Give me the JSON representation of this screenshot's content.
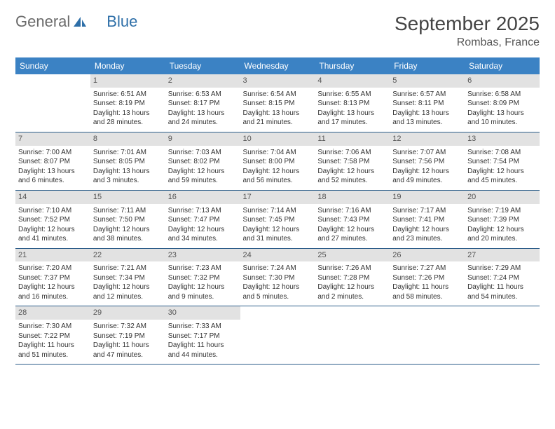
{
  "logo": {
    "part1": "General",
    "part2": "Blue"
  },
  "title": "September 2025",
  "location": "Rombas, France",
  "colors": {
    "header_bg": "#3b82c4",
    "daynum_bg": "#e2e2e2",
    "row_border": "#2d5e8a",
    "logo_gray": "#6b6b6b",
    "logo_blue": "#2e6fa8"
  },
  "weekdays": [
    "Sunday",
    "Monday",
    "Tuesday",
    "Wednesday",
    "Thursday",
    "Friday",
    "Saturday"
  ],
  "weeks": [
    [
      {
        "n": "",
        "sr": "",
        "ss": "",
        "dl": ""
      },
      {
        "n": "1",
        "sr": "Sunrise: 6:51 AM",
        "ss": "Sunset: 8:19 PM",
        "dl": "Daylight: 13 hours and 28 minutes."
      },
      {
        "n": "2",
        "sr": "Sunrise: 6:53 AM",
        "ss": "Sunset: 8:17 PM",
        "dl": "Daylight: 13 hours and 24 minutes."
      },
      {
        "n": "3",
        "sr": "Sunrise: 6:54 AM",
        "ss": "Sunset: 8:15 PM",
        "dl": "Daylight: 13 hours and 21 minutes."
      },
      {
        "n": "4",
        "sr": "Sunrise: 6:55 AM",
        "ss": "Sunset: 8:13 PM",
        "dl": "Daylight: 13 hours and 17 minutes."
      },
      {
        "n": "5",
        "sr": "Sunrise: 6:57 AM",
        "ss": "Sunset: 8:11 PM",
        "dl": "Daylight: 13 hours and 13 minutes."
      },
      {
        "n": "6",
        "sr": "Sunrise: 6:58 AM",
        "ss": "Sunset: 8:09 PM",
        "dl": "Daylight: 13 hours and 10 minutes."
      }
    ],
    [
      {
        "n": "7",
        "sr": "Sunrise: 7:00 AM",
        "ss": "Sunset: 8:07 PM",
        "dl": "Daylight: 13 hours and 6 minutes."
      },
      {
        "n": "8",
        "sr": "Sunrise: 7:01 AM",
        "ss": "Sunset: 8:05 PM",
        "dl": "Daylight: 13 hours and 3 minutes."
      },
      {
        "n": "9",
        "sr": "Sunrise: 7:03 AM",
        "ss": "Sunset: 8:02 PM",
        "dl": "Daylight: 12 hours and 59 minutes."
      },
      {
        "n": "10",
        "sr": "Sunrise: 7:04 AM",
        "ss": "Sunset: 8:00 PM",
        "dl": "Daylight: 12 hours and 56 minutes."
      },
      {
        "n": "11",
        "sr": "Sunrise: 7:06 AM",
        "ss": "Sunset: 7:58 PM",
        "dl": "Daylight: 12 hours and 52 minutes."
      },
      {
        "n": "12",
        "sr": "Sunrise: 7:07 AM",
        "ss": "Sunset: 7:56 PM",
        "dl": "Daylight: 12 hours and 49 minutes."
      },
      {
        "n": "13",
        "sr": "Sunrise: 7:08 AM",
        "ss": "Sunset: 7:54 PM",
        "dl": "Daylight: 12 hours and 45 minutes."
      }
    ],
    [
      {
        "n": "14",
        "sr": "Sunrise: 7:10 AM",
        "ss": "Sunset: 7:52 PM",
        "dl": "Daylight: 12 hours and 41 minutes."
      },
      {
        "n": "15",
        "sr": "Sunrise: 7:11 AM",
        "ss": "Sunset: 7:50 PM",
        "dl": "Daylight: 12 hours and 38 minutes."
      },
      {
        "n": "16",
        "sr": "Sunrise: 7:13 AM",
        "ss": "Sunset: 7:47 PM",
        "dl": "Daylight: 12 hours and 34 minutes."
      },
      {
        "n": "17",
        "sr": "Sunrise: 7:14 AM",
        "ss": "Sunset: 7:45 PM",
        "dl": "Daylight: 12 hours and 31 minutes."
      },
      {
        "n": "18",
        "sr": "Sunrise: 7:16 AM",
        "ss": "Sunset: 7:43 PM",
        "dl": "Daylight: 12 hours and 27 minutes."
      },
      {
        "n": "19",
        "sr": "Sunrise: 7:17 AM",
        "ss": "Sunset: 7:41 PM",
        "dl": "Daylight: 12 hours and 23 minutes."
      },
      {
        "n": "20",
        "sr": "Sunrise: 7:19 AM",
        "ss": "Sunset: 7:39 PM",
        "dl": "Daylight: 12 hours and 20 minutes."
      }
    ],
    [
      {
        "n": "21",
        "sr": "Sunrise: 7:20 AM",
        "ss": "Sunset: 7:37 PM",
        "dl": "Daylight: 12 hours and 16 minutes."
      },
      {
        "n": "22",
        "sr": "Sunrise: 7:21 AM",
        "ss": "Sunset: 7:34 PM",
        "dl": "Daylight: 12 hours and 12 minutes."
      },
      {
        "n": "23",
        "sr": "Sunrise: 7:23 AM",
        "ss": "Sunset: 7:32 PM",
        "dl": "Daylight: 12 hours and 9 minutes."
      },
      {
        "n": "24",
        "sr": "Sunrise: 7:24 AM",
        "ss": "Sunset: 7:30 PM",
        "dl": "Daylight: 12 hours and 5 minutes."
      },
      {
        "n": "25",
        "sr": "Sunrise: 7:26 AM",
        "ss": "Sunset: 7:28 PM",
        "dl": "Daylight: 12 hours and 2 minutes."
      },
      {
        "n": "26",
        "sr": "Sunrise: 7:27 AM",
        "ss": "Sunset: 7:26 PM",
        "dl": "Daylight: 11 hours and 58 minutes."
      },
      {
        "n": "27",
        "sr": "Sunrise: 7:29 AM",
        "ss": "Sunset: 7:24 PM",
        "dl": "Daylight: 11 hours and 54 minutes."
      }
    ],
    [
      {
        "n": "28",
        "sr": "Sunrise: 7:30 AM",
        "ss": "Sunset: 7:22 PM",
        "dl": "Daylight: 11 hours and 51 minutes."
      },
      {
        "n": "29",
        "sr": "Sunrise: 7:32 AM",
        "ss": "Sunset: 7:19 PM",
        "dl": "Daylight: 11 hours and 47 minutes."
      },
      {
        "n": "30",
        "sr": "Sunrise: 7:33 AM",
        "ss": "Sunset: 7:17 PM",
        "dl": "Daylight: 11 hours and 44 minutes."
      },
      {
        "n": "",
        "sr": "",
        "ss": "",
        "dl": ""
      },
      {
        "n": "",
        "sr": "",
        "ss": "",
        "dl": ""
      },
      {
        "n": "",
        "sr": "",
        "ss": "",
        "dl": ""
      },
      {
        "n": "",
        "sr": "",
        "ss": "",
        "dl": ""
      }
    ]
  ]
}
